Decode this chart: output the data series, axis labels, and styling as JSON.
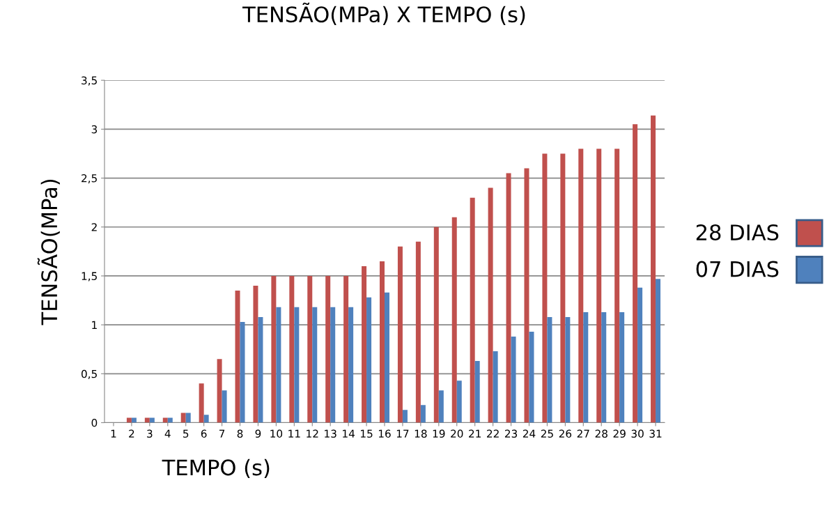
{
  "chart_data": {
    "type": "bar",
    "title": "TENSÃO(MPa) X TEMPO (s)",
    "xlabel": "TEMPO (s)",
    "ylabel": "TENSÃO(MPa)",
    "categories": [
      "1",
      "2",
      "3",
      "4",
      "5",
      "6",
      "7",
      "8",
      "9",
      "10",
      "11",
      "12",
      "13",
      "14",
      "15",
      "16",
      "17",
      "18",
      "19",
      "20",
      "21",
      "22",
      "23",
      "24",
      "25",
      "26",
      "27",
      "28",
      "29",
      "30",
      "31"
    ],
    "series": [
      {
        "name": "28 DIAS",
        "color": "#c0504d",
        "values": [
          null,
          0.05,
          0.05,
          0.05,
          0.1,
          0.4,
          0.65,
          1.35,
          1.4,
          1.5,
          1.5,
          1.5,
          1.5,
          1.5,
          1.6,
          1.65,
          1.8,
          1.85,
          2.0,
          2.1,
          2.3,
          2.4,
          2.55,
          2.6,
          2.75,
          2.75,
          2.8,
          2.8,
          2.8,
          3.05,
          3.14
        ]
      },
      {
        "name": "07 DIAS",
        "color": "#4f81bd",
        "values": [
          null,
          0.05,
          0.05,
          0.05,
          0.1,
          0.08,
          0.33,
          1.03,
          1.08,
          1.18,
          1.18,
          1.18,
          1.18,
          1.18,
          1.28,
          1.33,
          0.13,
          0.18,
          0.33,
          0.43,
          0.63,
          0.73,
          0.88,
          0.93,
          1.08,
          1.08,
          1.13,
          1.13,
          1.13,
          1.38,
          1.47
        ]
      }
    ],
    "ylim": [
      0,
      3.5
    ],
    "yticks": [
      0,
      {
        "value": 0.5,
        "label": "0,5"
      },
      1,
      {
        "value": 1.5,
        "label": "1,5"
      },
      2,
      {
        "value": 2.5,
        "label": "2,5"
      },
      3,
      {
        "value": 3.5,
        "label": "3,5"
      }
    ],
    "grid": "y",
    "legend": "right"
  }
}
